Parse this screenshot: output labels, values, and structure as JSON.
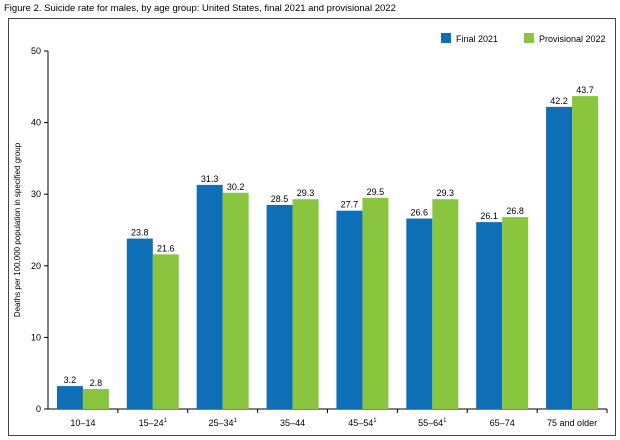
{
  "figure_title": "Figure 2. Suicide rate for males, by age group: United States, final 2021 and provisional 2022",
  "colors": {
    "final": "#0f6fb6",
    "provisional": "#8ac53f",
    "axis": "#000000",
    "frame": "#444444"
  },
  "chart_data": {
    "type": "bar",
    "title": "Figure 2. Suicide rate for males, by age group: United States, final 2021 and provisional 2022",
    "xlabel": "",
    "ylabel": "Deaths per 100,000 population in specified group",
    "ylim": [
      0,
      50
    ],
    "yticks": [
      0,
      10,
      20,
      30,
      40,
      50
    ],
    "grid": false,
    "legend_position": "top-right",
    "categories": [
      "10–14",
      "15–24",
      "25–34",
      "35–44",
      "45–54",
      "55–64",
      "65–74",
      "75 and older"
    ],
    "category_footnotes": [
      "",
      "1",
      "1",
      "",
      "1",
      "1",
      "",
      ""
    ],
    "series": [
      {
        "name": "Final 2021",
        "values": [
          3.2,
          23.8,
          31.3,
          28.5,
          27.7,
          26.6,
          26.1,
          42.2
        ],
        "labels": [
          "3.2",
          "23.8",
          "31.3",
          "28.5",
          "27.7",
          "26.6",
          "26.1",
          "42.2"
        ]
      },
      {
        "name": "Provisional 2022",
        "values": [
          2.8,
          21.6,
          30.2,
          29.3,
          29.5,
          29.3,
          26.8,
          43.7
        ],
        "labels": [
          "2.8",
          "21.6",
          "30.2",
          "29.3",
          "29.5",
          "29.3",
          "26.8",
          "43.7"
        ]
      }
    ]
  }
}
